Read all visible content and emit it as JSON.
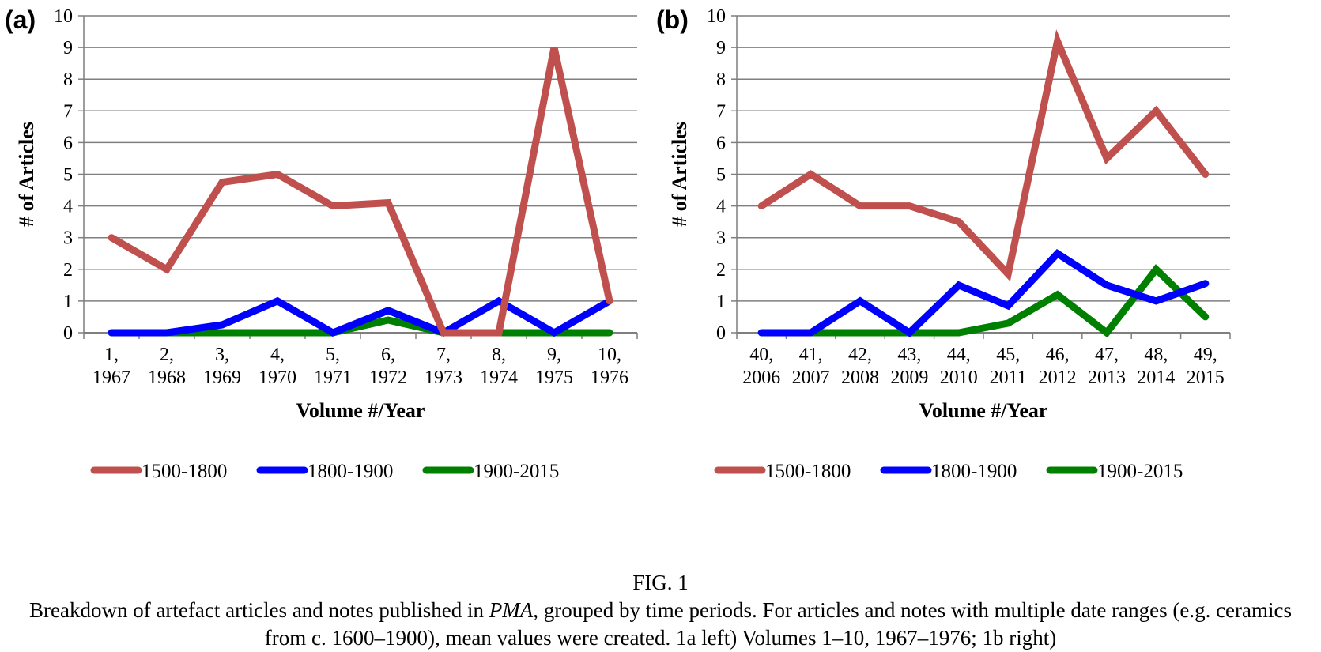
{
  "figure": {
    "label": "FIG. 1",
    "caption_before": "Breakdown of artefact articles and notes published in ",
    "caption_italic": "PMA",
    "caption_after": ", grouped by time periods. For articles and notes with multiple date ranges (e.g. ceramics from c. 1600–1900), mean values were created. 1a left) Volumes 1–10, 1967–1976; 1b right)"
  },
  "chart_data": [
    {
      "panel": "(a)",
      "type": "line",
      "categories": [
        "1,\n1967",
        "2,\n1968",
        "3,\n1969",
        "4,\n1970",
        "5,\n1971",
        "6,\n1972",
        "7,\n1973",
        "8,\n1974",
        "9,\n1975",
        "10,\n1976"
      ],
      "xlabel": "Volume #/Year",
      "ylabel": "# of Articles",
      "ylim": [
        0,
        10
      ],
      "yticks": [
        0,
        1,
        2,
        3,
        4,
        5,
        6,
        7,
        8,
        9,
        10
      ],
      "grid": true,
      "legend_position": "bottom",
      "series": [
        {
          "name": "1500-1800",
          "color": "#c0504d",
          "values": [
            3,
            2,
            4.75,
            5,
            4,
            4.1,
            0,
            0,
            9,
            1
          ]
        },
        {
          "name": "1800-1900",
          "color": "#0000ff",
          "values": [
            0,
            0,
            0.25,
            1,
            0,
            0.7,
            0,
            1,
            0,
            1
          ]
        },
        {
          "name": "1900-2015",
          "color": "#008000",
          "values": [
            0,
            0,
            0,
            0,
            0,
            0.4,
            0,
            0,
            0,
            0
          ]
        }
      ]
    },
    {
      "panel": "(b)",
      "type": "line",
      "categories": [
        "40,\n2006",
        "41,\n2007",
        "42,\n2008",
        "43,\n2009",
        "44,\n2010",
        "45,\n2011",
        "46,\n2012",
        "47,\n2013",
        "48,\n2014",
        "49,\n2015"
      ],
      "xlabel": "Volume #/Year",
      "ylabel": "# of Articles",
      "ylim": [
        0,
        10
      ],
      "yticks": [
        0,
        1,
        2,
        3,
        4,
        5,
        6,
        7,
        8,
        9,
        10
      ],
      "grid": true,
      "legend_position": "bottom",
      "series": [
        {
          "name": "1500-1800",
          "color": "#c0504d",
          "values": [
            4,
            5,
            4,
            4,
            3.5,
            1.85,
            9.2,
            5.5,
            7,
            5
          ]
        },
        {
          "name": "1800-1900",
          "color": "#0000ff",
          "values": [
            0,
            0,
            1,
            0,
            1.5,
            0.85,
            2.5,
            1.5,
            1,
            1.55
          ]
        },
        {
          "name": "1900-2015",
          "color": "#008000",
          "values": [
            0,
            0,
            0,
            0,
            0,
            0.3,
            1.2,
            0,
            2,
            0.5
          ]
        }
      ]
    }
  ]
}
